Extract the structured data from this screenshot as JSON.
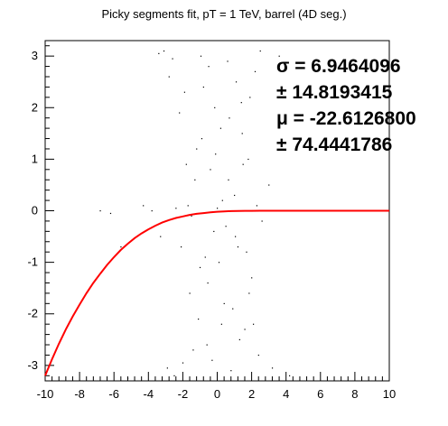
{
  "chart_data": {
    "type": "scatter",
    "title": "Picky segments fit, pT = 1 TeV, barrel (4D seg.)",
    "xlabel": "",
    "ylabel": "",
    "xlim": [
      -10,
      10
    ],
    "ylim": [
      -3.3,
      3.3
    ],
    "grid": false,
    "legend": "none",
    "x_ticks": [
      -10,
      -8,
      -6,
      -4,
      -2,
      0,
      2,
      4,
      6,
      8,
      10
    ],
    "y_ticks": [
      3,
      2,
      1,
      0,
      -1,
      -2,
      -3
    ],
    "x_tick_labels": [
      "-10",
      "-8",
      "-6",
      "-4",
      "-2",
      "0",
      "2",
      "4",
      "6",
      "8",
      "10"
    ],
    "y_tick_labels": [
      "3",
      "2",
      "1",
      "0",
      "-1",
      "-2",
      "-3"
    ],
    "series": [
      {
        "type": "scatter",
        "color": "#000000",
        "description_x_center": 0.5,
        "points": [
          [
            -3.4,
            3.05
          ],
          [
            -3.1,
            3.1
          ],
          [
            -2.8,
            2.6
          ],
          [
            -2.5,
            -3.2
          ],
          [
            -2.9,
            -3.05
          ],
          [
            -6.8,
            0.0
          ],
          [
            -6.2,
            -0.05
          ],
          [
            -5.6,
            -0.7
          ],
          [
            -5.2,
            -3.25
          ],
          [
            -4.3,
            0.1
          ],
          [
            -3.8,
            0.0
          ],
          [
            -3.3,
            -0.5
          ],
          [
            -2.2,
            1.9
          ],
          [
            -2.0,
            -2.95
          ],
          [
            -2.4,
            0.05
          ],
          [
            -1.7,
            0.1
          ],
          [
            -1.5,
            -0.1
          ],
          [
            -1.2,
            1.2
          ],
          [
            -1.0,
            -1.1
          ],
          [
            -0.8,
            2.4
          ],
          [
            -0.6,
            -2.6
          ],
          [
            -0.4,
            0.8
          ],
          [
            -0.2,
            -0.4
          ],
          [
            0.0,
            0.05
          ],
          [
            0.2,
            1.6
          ],
          [
            0.4,
            -1.8
          ],
          [
            0.6,
            2.9
          ],
          [
            0.8,
            -3.1
          ],
          [
            1.0,
            0.3
          ],
          [
            1.2,
            -0.7
          ],
          [
            1.4,
            2.1
          ],
          [
            1.6,
            -2.3
          ],
          [
            1.8,
            1.0
          ],
          [
            2.0,
            -1.3
          ],
          [
            2.2,
            2.7
          ],
          [
            2.4,
            -2.8
          ],
          [
            2.8,
            0.0
          ],
          [
            3.2,
            -3.05
          ],
          [
            3.6,
            3.0
          ],
          [
            4.2,
            -3.2
          ],
          [
            3.0,
            0.5
          ],
          [
            2.6,
            -0.2
          ],
          [
            -1.9,
            2.3
          ],
          [
            -1.6,
            -1.6
          ],
          [
            -1.3,
            0.6
          ],
          [
            -1.1,
            -2.1
          ],
          [
            -0.9,
            1.4
          ],
          [
            -0.7,
            -0.9
          ],
          [
            -0.5,
            2.8
          ],
          [
            -0.3,
            -2.9
          ],
          [
            -0.1,
            1.1
          ],
          [
            0.1,
            -1.0
          ],
          [
            0.3,
            0.2
          ],
          [
            0.5,
            -0.3
          ],
          [
            0.7,
            1.8
          ],
          [
            0.9,
            -1.9
          ],
          [
            1.1,
            2.5
          ],
          [
            1.3,
            -2.5
          ],
          [
            1.5,
            0.9
          ],
          [
            1.7,
            -0.8
          ],
          [
            1.9,
            2.2
          ],
          [
            2.1,
            -2.2
          ],
          [
            -2.1,
            -0.7
          ],
          [
            -1.8,
            0.9
          ],
          [
            -1.4,
            -2.7
          ],
          [
            -0.95,
            3.0
          ],
          [
            -0.55,
            -1.4
          ],
          [
            -0.15,
            2.0
          ],
          [
            0.25,
            -2.2
          ],
          [
            0.65,
            0.6
          ],
          [
            1.05,
            -0.5
          ],
          [
            1.45,
            1.5
          ],
          [
            1.85,
            -1.6
          ],
          [
            2.3,
            0.1
          ],
          [
            -2.6,
            2.95
          ],
          [
            2.5,
            3.1
          ]
        ]
      },
      {
        "type": "line",
        "color": "#ff0000",
        "description": "fit curve",
        "points": [
          [
            -10,
            -3.2
          ],
          [
            -9.6,
            -2.88
          ],
          [
            -9.2,
            -2.58
          ],
          [
            -8.8,
            -2.3
          ],
          [
            -8.4,
            -2.05
          ],
          [
            -8.0,
            -1.82
          ],
          [
            -7.6,
            -1.6
          ],
          [
            -7.2,
            -1.4
          ],
          [
            -6.8,
            -1.22
          ],
          [
            -6.4,
            -1.05
          ],
          [
            -6.0,
            -0.9
          ],
          [
            -5.6,
            -0.76
          ],
          [
            -5.2,
            -0.64
          ],
          [
            -4.8,
            -0.53
          ],
          [
            -4.4,
            -0.44
          ],
          [
            -4.0,
            -0.36
          ],
          [
            -3.6,
            -0.29
          ],
          [
            -3.2,
            -0.23
          ],
          [
            -2.8,
            -0.18
          ],
          [
            -2.4,
            -0.14
          ],
          [
            -2.0,
            -0.11
          ],
          [
            -1.6,
            -0.08
          ],
          [
            -1.2,
            -0.06
          ],
          [
            -0.8,
            -0.045
          ],
          [
            -0.4,
            -0.03
          ],
          [
            0.0,
            -0.02
          ],
          [
            0.4,
            -0.012
          ],
          [
            0.8,
            -0.007
          ],
          [
            1.2,
            -0.004
          ],
          [
            1.6,
            -0.002
          ],
          [
            2.0,
            -0.001
          ],
          [
            2.5,
            0.0
          ],
          [
            3.0,
            0.0
          ],
          [
            4.0,
            0.0
          ],
          [
            6.0,
            0.0
          ],
          [
            8.0,
            0.0
          ],
          [
            10.0,
            0.0
          ]
        ]
      }
    ],
    "fit_results": [
      {
        "symbol": "σ",
        "text": "σ = 6.9464096"
      },
      {
        "symbol": "±",
        "text": "± 14.8193415"
      },
      {
        "symbol": "μ",
        "text": "μ = -22.6126800"
      },
      {
        "symbol": "±",
        "text": "± 74.4441786"
      }
    ]
  }
}
